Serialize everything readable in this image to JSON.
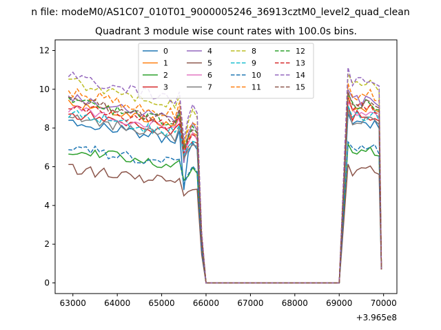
{
  "figure": {
    "suptitle": "n file: modeM0/AS1C07_010T01_9000005246_36913cztM0_level2_quad_clean",
    "offset_label": "+3.965e8"
  },
  "chart_data": {
    "type": "line",
    "title": "Quadrant 3 module wise count rates with 100.0s bins.",
    "xlabel": "",
    "ylabel": "",
    "x_offset": 396500000,
    "xlim": [
      62600,
      70300
    ],
    "ylim": [
      -0.55,
      12.55
    ],
    "xticks": [
      63000,
      64000,
      65000,
      66000,
      67000,
      68000,
      69000,
      70000
    ],
    "yticks": [
      0,
      2,
      4,
      6,
      8,
      10,
      12
    ],
    "grid": false,
    "legend": {
      "placement": "upper-center",
      "columns": 4
    },
    "gap": {
      "start": 66000,
      "end": 69000,
      "value": 0
    },
    "series": [
      {
        "name": "0",
        "color": "#1f77b4",
        "dash": "solid",
        "base": 8.4,
        "drop": 4.8
      },
      {
        "name": "1",
        "color": "#ff7f0e",
        "dash": "solid",
        "base": 9.3,
        "drop": 6.8
      },
      {
        "name": "2",
        "color": "#2ca02c",
        "dash": "solid",
        "base": 6.9,
        "drop": 5.3
      },
      {
        "name": "3",
        "color": "#d62728",
        "dash": "solid",
        "base": 8.8,
        "drop": 6.5
      },
      {
        "name": "4",
        "color": "#9467bd",
        "dash": "solid",
        "base": 9.6,
        "drop": 6.2
      },
      {
        "name": "5",
        "color": "#8c564b",
        "dash": "solid",
        "base": 5.9,
        "drop": 4.5
      },
      {
        "name": "6",
        "color": "#e377c2",
        "dash": "solid",
        "base": 9.0,
        "drop": 6.8
      },
      {
        "name": "7",
        "color": "#7f7f7f",
        "dash": "solid",
        "base": 8.6,
        "drop": 6.4
      },
      {
        "name": "8",
        "color": "#bcbd22",
        "dash": "dashed",
        "base": 10.4,
        "drop": 7.0
      },
      {
        "name": "9",
        "color": "#17becf",
        "dash": "dashed",
        "base": 8.8,
        "drop": 6.6
      },
      {
        "name": "10",
        "color": "#1f77b4",
        "dash": "dashed",
        "base": 7.0,
        "drop": 5.1
      },
      {
        "name": "11",
        "color": "#ff7f0e",
        "dash": "dashed",
        "base": 9.9,
        "drop": 7.2
      },
      {
        "name": "12",
        "color": "#2ca02c",
        "dash": "dashed",
        "base": 9.4,
        "drop": 6.9
      },
      {
        "name": "13",
        "color": "#d62728",
        "dash": "dashed",
        "base": 9.2,
        "drop": 6.7
      },
      {
        "name": "14",
        "color": "#9467bd",
        "dash": "dashed",
        "base": 10.7,
        "drop": 7.4
      },
      {
        "name": "15",
        "color": "#8c564b",
        "dash": "dashed",
        "base": 9.5,
        "drop": 7.0
      }
    ]
  }
}
